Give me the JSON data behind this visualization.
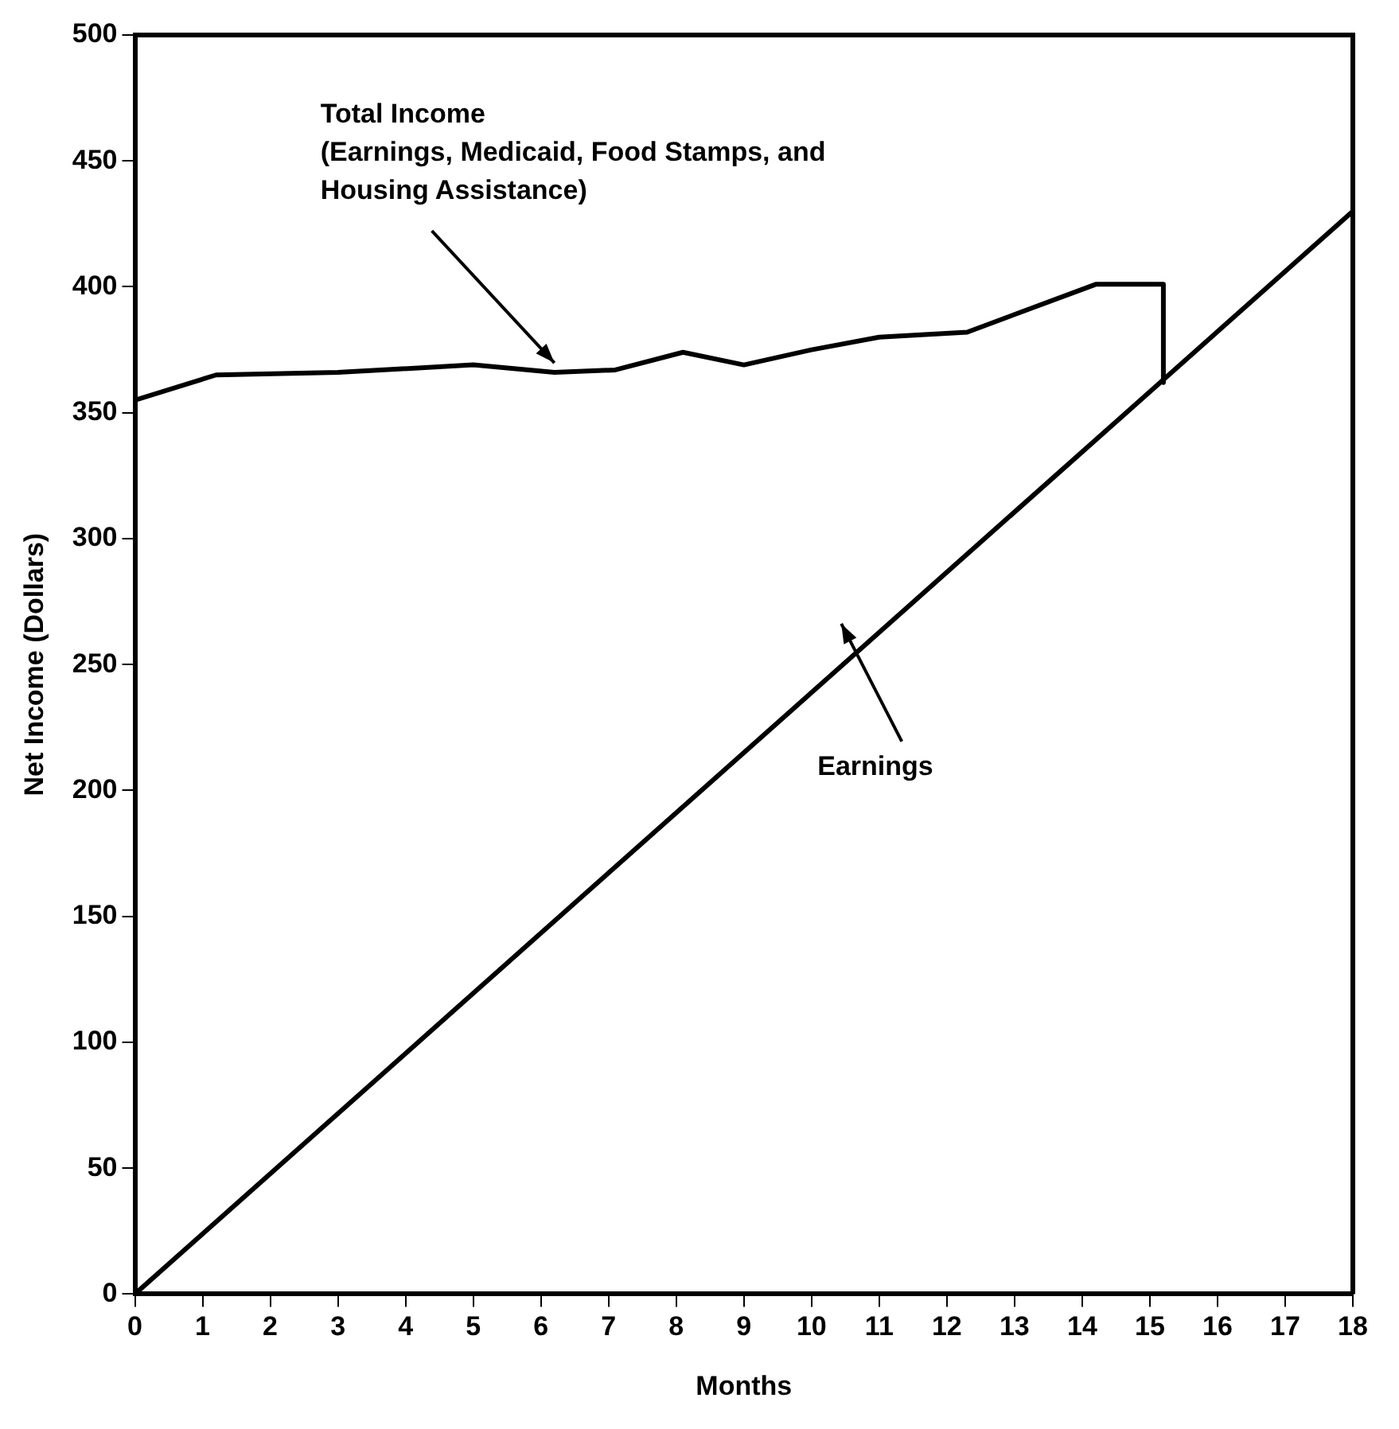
{
  "chart_data": {
    "type": "line",
    "xlabel": "Months",
    "ylabel": "Net Income (Dollars)",
    "xlim": [
      0,
      18
    ],
    "xticks": [
      0,
      1,
      2,
      3,
      4,
      5,
      6,
      7,
      8,
      9,
      10,
      11,
      12,
      13,
      14,
      15,
      16,
      17,
      18
    ],
    "ylim": [
      0,
      500
    ],
    "yticks": [
      0,
      50,
      100,
      150,
      200,
      250,
      300,
      350,
      400,
      450,
      500
    ],
    "grid": false,
    "series": [
      {
        "color": "#000000",
        "x": [
          0,
          1.2,
          3,
          5,
          6.2,
          7.1,
          8.1,
          9,
          10,
          11,
          12.3,
          13,
          14.2,
          15.2,
          15.2
        ],
        "values": [
          355,
          365,
          366,
          369,
          366,
          367,
          374,
          369,
          375,
          380,
          382,
          389,
          401,
          401,
          362
        ]
      },
      {
        "color": "#000000",
        "x": [
          0,
          18
        ],
        "values": [
          0,
          430
        ]
      }
    ],
    "annotations": [
      {
        "text": "Total Income\n(Earnings, Medicaid, Food Stamps, and Housing Assistance)",
        "x": 6.2,
        "y": 366
      },
      "Earnings"
    ]
  }
}
